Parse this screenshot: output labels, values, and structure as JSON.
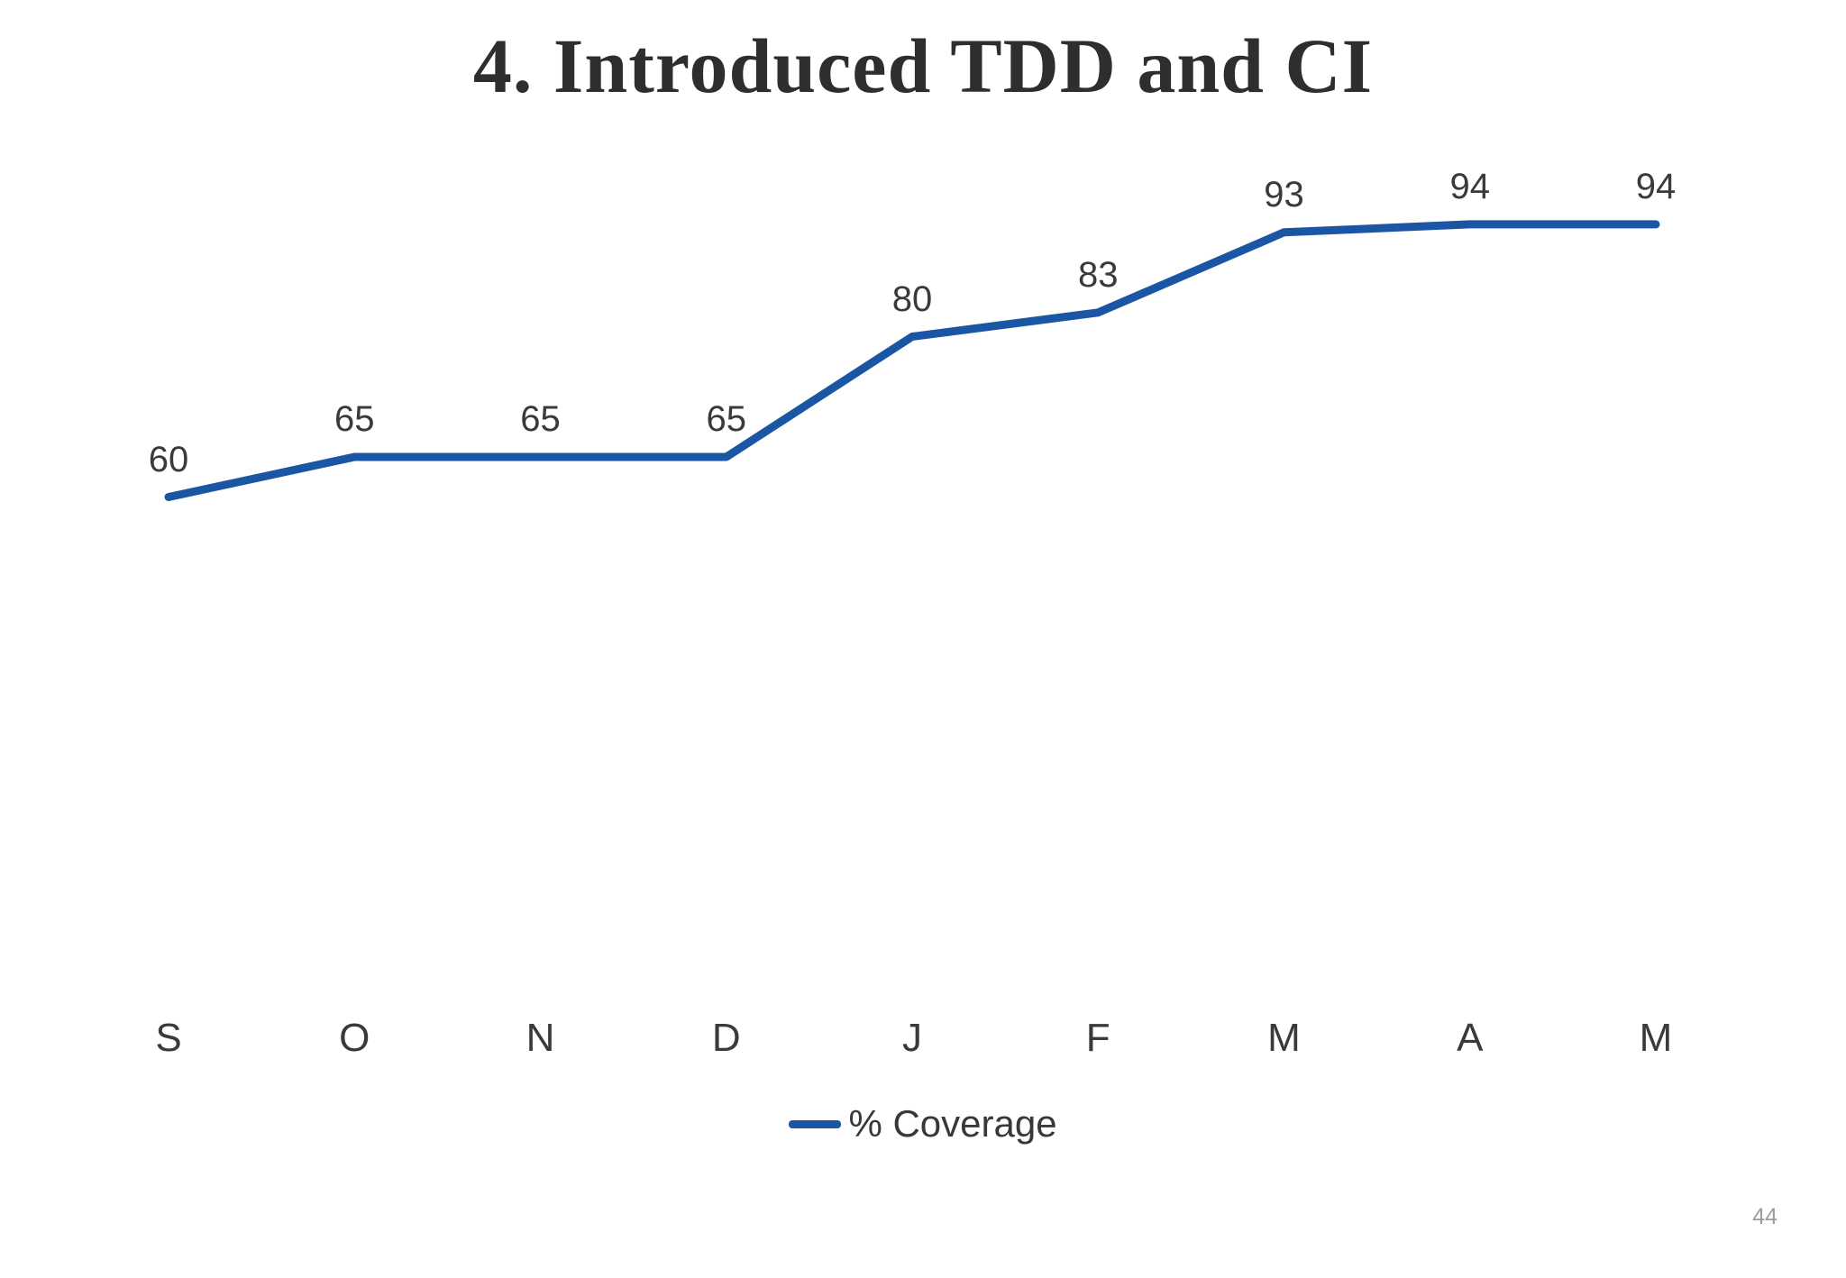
{
  "slide": {
    "title": "4. Introduced TDD and CI",
    "page_number": "44"
  },
  "chart_data": {
    "type": "line",
    "categories": [
      "S",
      "O",
      "N",
      "D",
      "J",
      "F",
      "M",
      "A",
      "M"
    ],
    "series": [
      {
        "name": "% Coverage",
        "values": [
          60,
          65,
          65,
          65,
          80,
          83,
          93,
          94,
          94
        ],
        "color": "#1a56a4"
      }
    ],
    "title": "",
    "xlabel": "",
    "ylabel": "",
    "data_labels": true,
    "grid": false,
    "y_axis_visible": false,
    "x_axis_line_visible": false,
    "legend_position": "bottom-center",
    "ylim": [
      52,
      102
    ]
  },
  "colors": {
    "accent_line": "#1a56a4",
    "title_text": "#2e2e2e",
    "label_text": "#3a3a3a",
    "legend_text": "#383838",
    "page_number_text": "#9b9ba1",
    "background": "#ffffff"
  }
}
